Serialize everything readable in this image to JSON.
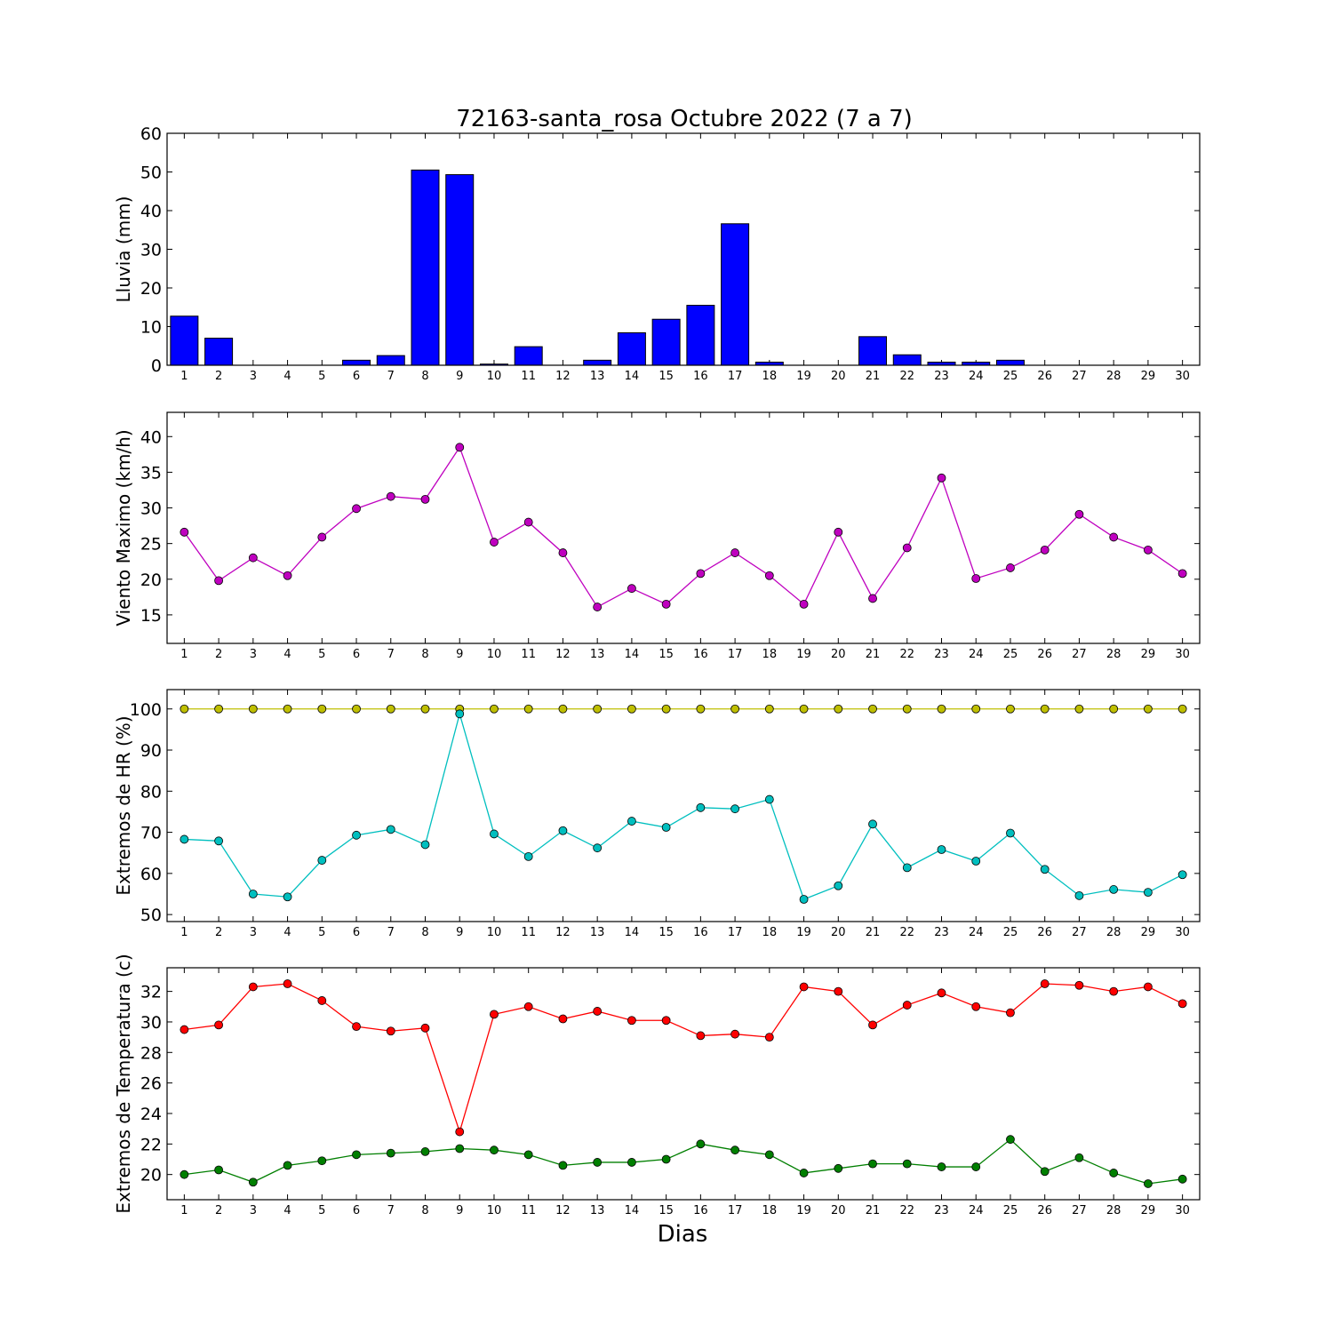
{
  "figure": {
    "title": "72163-santa_rosa Octubre 2022  (7 a 7)",
    "xlabel": "Dias"
  },
  "chart_data": [
    {
      "type": "bar",
      "ylabel": "Lluvia (mm)",
      "x": [
        1,
        2,
        3,
        4,
        5,
        6,
        7,
        8,
        9,
        10,
        11,
        12,
        13,
        14,
        15,
        16,
        17,
        18,
        19,
        20,
        21,
        22,
        23,
        24,
        25,
        26,
        27,
        28,
        29,
        30
      ],
      "ylim": [
        0,
        60
      ],
      "yticks": [
        0,
        10,
        20,
        30,
        40,
        50,
        60
      ],
      "series": [
        {
          "color": "#0000ff",
          "values": [
            12.7,
            7.0,
            0,
            0,
            0,
            1.3,
            2.5,
            50.5,
            49.3,
            0.3,
            4.8,
            0,
            1.3,
            8.4,
            11.9,
            15.5,
            36.6,
            0.8,
            0,
            0,
            7.4,
            2.7,
            0.8,
            0.8,
            1.3,
            0,
            0,
            0,
            0,
            0
          ]
        }
      ]
    },
    {
      "type": "line",
      "ylabel": "Viento Maximo (km/h)",
      "x": [
        1,
        2,
        3,
        4,
        5,
        6,
        7,
        8,
        9,
        10,
        11,
        12,
        13,
        14,
        15,
        16,
        17,
        18,
        19,
        20,
        21,
        22,
        23,
        24,
        25,
        26,
        27,
        28,
        29,
        30
      ],
      "ylim": [
        11,
        43.4
      ],
      "yticks": [
        15,
        20,
        25,
        30,
        35,
        40
      ],
      "series": [
        {
          "color": "#bf00bf",
          "values": [
            26.6,
            19.8,
            23.0,
            20.5,
            25.9,
            29.9,
            31.6,
            31.2,
            38.5,
            25.2,
            28.0,
            23.7,
            16.1,
            18.7,
            16.5,
            20.8,
            23.7,
            20.5,
            16.5,
            26.6,
            17.3,
            24.4,
            34.2,
            20.1,
            21.6,
            24.1,
            29.1,
            25.9,
            24.1,
            20.8
          ]
        }
      ]
    },
    {
      "type": "line",
      "ylabel": "Extremos de HR (%)",
      "x": [
        1,
        2,
        3,
        4,
        5,
        6,
        7,
        8,
        9,
        10,
        11,
        12,
        13,
        14,
        15,
        16,
        17,
        18,
        19,
        20,
        21,
        22,
        23,
        24,
        25,
        26,
        27,
        28,
        29,
        30
      ],
      "ylim": [
        48.3,
        104.7
      ],
      "yticks": [
        50,
        60,
        70,
        80,
        90,
        100
      ],
      "series": [
        {
          "color": "#bfbf00",
          "values": [
            100,
            100,
            100,
            100,
            100,
            100,
            100,
            100,
            100,
            100,
            100,
            100,
            100,
            100,
            100,
            100,
            100,
            100,
            100,
            100,
            100,
            100,
            100,
            100,
            100,
            100,
            100,
            100,
            100,
            100
          ]
        },
        {
          "color": "#00bfbf",
          "values": [
            68.3,
            67.9,
            55.0,
            54.3,
            63.2,
            69.3,
            70.7,
            67.0,
            98.8,
            69.6,
            64.1,
            70.4,
            66.2,
            72.7,
            71.2,
            76.0,
            75.7,
            78.0,
            53.7,
            57.0,
            72.0,
            61.4,
            65.8,
            63.0,
            69.8,
            61.0,
            54.6,
            56.1,
            55.4,
            59.7
          ]
        }
      ]
    },
    {
      "type": "line",
      "ylabel": "Extremos de Temperatura (c)",
      "x": [
        1,
        2,
        3,
        4,
        5,
        6,
        7,
        8,
        9,
        10,
        11,
        12,
        13,
        14,
        15,
        16,
        17,
        18,
        19,
        20,
        21,
        22,
        23,
        24,
        25,
        26,
        27,
        28,
        29,
        30
      ],
      "ylim": [
        18.35,
        33.55
      ],
      "yticks": [
        20,
        22,
        24,
        26,
        28,
        30,
        32
      ],
      "series": [
        {
          "color": "#ff0000",
          "values": [
            29.5,
            29.8,
            32.3,
            32.5,
            31.4,
            29.7,
            29.4,
            29.6,
            22.8,
            30.5,
            31.0,
            30.2,
            30.7,
            30.1,
            30.1,
            29.1,
            29.2,
            29.0,
            32.3,
            32.0,
            29.8,
            31.1,
            31.9,
            31.0,
            30.6,
            32.5,
            32.4,
            32.0,
            32.3,
            31.2
          ]
        },
        {
          "color": "#007f00",
          "values": [
            20.0,
            20.3,
            19.5,
            20.6,
            20.9,
            21.3,
            21.4,
            21.5,
            21.7,
            21.6,
            21.3,
            20.6,
            20.8,
            20.8,
            21.0,
            22.0,
            21.6,
            21.3,
            20.1,
            20.4,
            20.7,
            20.7,
            20.5,
            20.5,
            22.3,
            20.2,
            21.1,
            20.1,
            19.4,
            19.7
          ]
        }
      ]
    }
  ]
}
